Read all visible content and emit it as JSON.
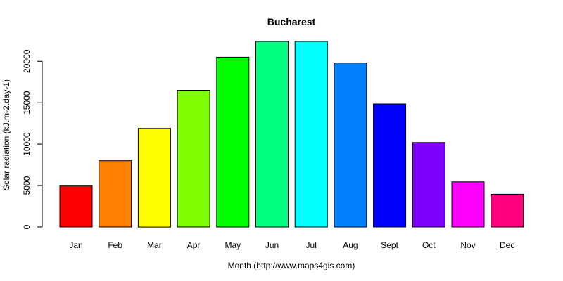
{
  "chart_data": {
    "type": "bar",
    "title": "Bucharest",
    "xlabel": "Month (http://www.maps4gis.com)",
    "ylabel": "Solar radiation (kJ.m-2.day-1)",
    "categories": [
      "Jan",
      "Feb",
      "Mar",
      "Apr",
      "May",
      "Jun",
      "Jul",
      "Aug",
      "Sept",
      "Oct",
      "Nov",
      "Dec"
    ],
    "values": [
      4950,
      8000,
      11900,
      16500,
      20500,
      22400,
      22400,
      19800,
      14850,
      10200,
      5450,
      3950
    ],
    "colors": [
      "#FF0000",
      "#FF8000",
      "#FFFF00",
      "#80FF00",
      "#00FF00",
      "#00FF80",
      "#00FFFF",
      "#0080FF",
      "#0000FF",
      "#8000FF",
      "#FF00FF",
      "#FF0080"
    ],
    "ylim": [
      0,
      22400
    ],
    "yticks": [
      0,
      5000,
      10000,
      15000,
      20000
    ],
    "grid": false
  }
}
